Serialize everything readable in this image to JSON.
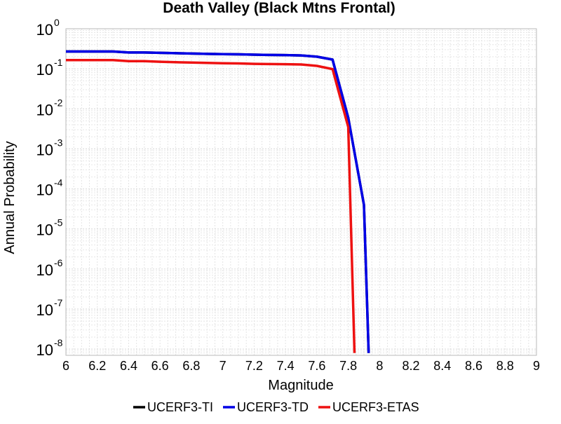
{
  "chart_data": {
    "type": "line",
    "title": "Death Valley (Black Mtns Frontal)",
    "xlabel": "Magnitude",
    "ylabel": "Annual Probability",
    "x_axis": {
      "scale": "linear",
      "range": [
        6,
        9
      ],
      "ticks": [
        6,
        6.2,
        6.4,
        6.6,
        6.8,
        7,
        7.2,
        7.4,
        7.6,
        7.8,
        8,
        8.2,
        8.4,
        8.6,
        8.8,
        9
      ],
      "tick_labels": [
        "6",
        "6.2",
        "6.4",
        "6.6",
        "6.8",
        "7",
        "7.2",
        "7.4",
        "7.6",
        "7.8",
        "8",
        "8.2",
        "8.4",
        "8.6",
        "8.8",
        "9"
      ]
    },
    "y_axis": {
      "scale": "log",
      "range": [
        7e-09,
        1
      ],
      "ticks": [
        {
          "value": 1,
          "base": "10",
          "exp": "0"
        },
        {
          "value": 0.1,
          "base": "10",
          "exp": "-1"
        },
        {
          "value": 0.01,
          "base": "10",
          "exp": "-2"
        },
        {
          "value": 0.001,
          "base": "10",
          "exp": "-3"
        },
        {
          "value": 0.0001,
          "base": "10",
          "exp": "-4"
        },
        {
          "value": 1e-05,
          "base": "10",
          "exp": "-5"
        },
        {
          "value": 1e-06,
          "base": "10",
          "exp": "-6"
        },
        {
          "value": 1e-07,
          "base": "10",
          "exp": "-7"
        },
        {
          "value": 1e-08,
          "base": "10",
          "exp": "-8"
        }
      ]
    },
    "grid": true,
    "legend_position": "bottom",
    "series": [
      {
        "name": "UCERF3-TI",
        "color": "#000000",
        "x": [
          6.0,
          6.1,
          6.2,
          6.3,
          6.4,
          6.5,
          6.6,
          6.7,
          6.8,
          6.9,
          7.0,
          7.1,
          7.2,
          7.3,
          7.4,
          7.5,
          7.6,
          7.7,
          7.8,
          7.9,
          7.93
        ],
        "y": [
          0.27,
          0.27,
          0.27,
          0.27,
          0.255,
          0.255,
          0.25,
          0.245,
          0.24,
          0.235,
          0.232,
          0.23,
          0.225,
          0.222,
          0.22,
          0.215,
          0.2,
          0.17,
          0.006,
          4e-05,
          8e-09
        ]
      },
      {
        "name": "UCERF3-TD",
        "color": "#0000e6",
        "x": [
          6.0,
          6.1,
          6.2,
          6.3,
          6.4,
          6.5,
          6.6,
          6.7,
          6.8,
          6.9,
          7.0,
          7.1,
          7.2,
          7.3,
          7.4,
          7.5,
          7.6,
          7.7,
          7.8,
          7.9,
          7.93
        ],
        "y": [
          0.27,
          0.27,
          0.27,
          0.27,
          0.255,
          0.255,
          0.25,
          0.245,
          0.24,
          0.235,
          0.232,
          0.23,
          0.225,
          0.222,
          0.22,
          0.215,
          0.2,
          0.17,
          0.006,
          4e-05,
          8e-09
        ]
      },
      {
        "name": "UCERF3-ETAS",
        "color": "#ee1111",
        "x": [
          6.0,
          6.1,
          6.2,
          6.3,
          6.4,
          6.5,
          6.6,
          6.7,
          6.8,
          6.9,
          7.0,
          7.1,
          7.2,
          7.3,
          7.4,
          7.5,
          7.6,
          7.7,
          7.8,
          7.84
        ],
        "y": [
          0.165,
          0.165,
          0.165,
          0.165,
          0.155,
          0.155,
          0.15,
          0.146,
          0.143,
          0.14,
          0.138,
          0.136,
          0.133,
          0.131,
          0.13,
          0.128,
          0.118,
          0.098,
          0.0035,
          8e-09
        ]
      }
    ]
  }
}
